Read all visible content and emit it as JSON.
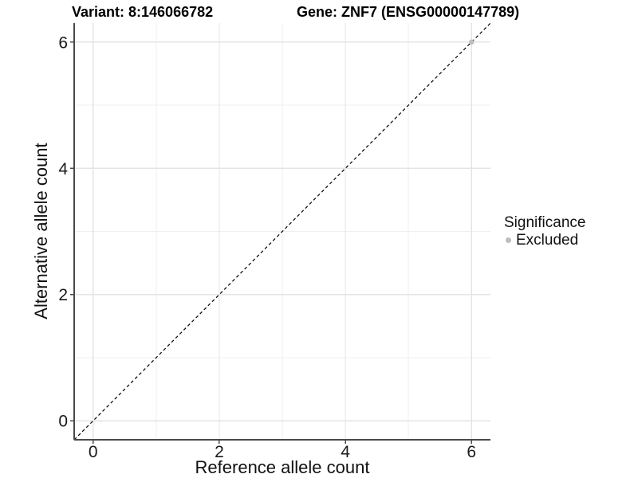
{
  "header": {
    "variant_title": "Variant: 8:146066782",
    "gene_title": "Gene: ZNF7 (ENSG00000147789)"
  },
  "chart_data": {
    "type": "scatter",
    "xlabel": "Reference allele count",
    "ylabel": "Alternative allele count",
    "xlim": [
      -0.3,
      6.3
    ],
    "ylim": [
      -0.3,
      6.3
    ],
    "x_major_ticks": [
      0,
      2,
      4,
      6
    ],
    "y_major_ticks": [
      0,
      2,
      4,
      6
    ],
    "x_minor_ticks": [
      1,
      3,
      5
    ],
    "y_minor_ticks": [
      1,
      3,
      5
    ],
    "grid": "on",
    "legend_position": "right",
    "identity_line": {
      "style": "dashed",
      "x1": -0.3,
      "y1": -0.3,
      "x2": 6.3,
      "y2": 6.3,
      "color": "#000000"
    },
    "series": [
      {
        "name": "Excluded",
        "color": "#bdbdbd",
        "points": [
          {
            "x": 6,
            "y": 6
          }
        ]
      }
    ]
  },
  "legend": {
    "title": "Significance",
    "items": [
      {
        "label": "Excluded",
        "color": "#bdbdbd"
      }
    ]
  },
  "colors": {
    "background": "#ffffff",
    "grid_major": "#e4e4e4",
    "grid_minor": "#efefef",
    "axis_line": "#4a4a4a",
    "tick_text": "#1a1a1a",
    "point": "#bdbdbd"
  }
}
